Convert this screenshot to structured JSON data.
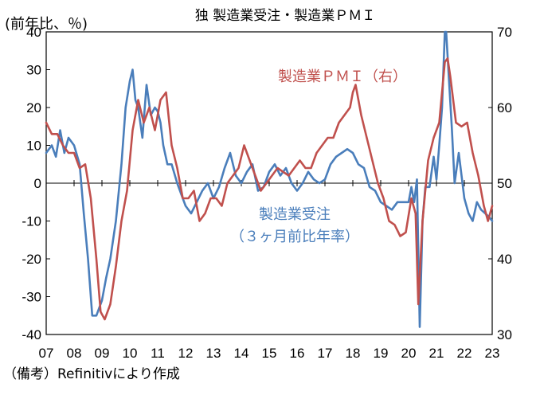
{
  "chart_data": {
    "type": "line",
    "title": "独 製造業受注・製造業ＰＭＩ",
    "left_axis_label": "(前年比、％)",
    "ylim_left": [
      -40,
      40
    ],
    "ylim_right": [
      30,
      70
    ],
    "left_ticks": [
      "40",
      "30",
      "20",
      "10",
      "0",
      "-10",
      "-20",
      "-30",
      "-40"
    ],
    "right_ticks": [
      "70",
      "60",
      "50",
      "40",
      "30"
    ],
    "xlim": [
      2007,
      2023
    ],
    "x_ticks": [
      "07",
      "08",
      "09",
      "10",
      "11",
      "12",
      "13",
      "14",
      "15",
      "16",
      "17",
      "18",
      "19",
      "20",
      "21",
      "22",
      "23"
    ],
    "source_note": "（備考）Refinitivにより作成",
    "series": [
      {
        "name": "製造業受注",
        "name_line2": "（３ヶ月前比年率）",
        "axis": "left",
        "color": "#4a7ebb",
        "x": [
          2007.0,
          2007.2,
          2007.35,
          2007.5,
          2007.65,
          2007.8,
          2008.0,
          2008.2,
          2008.35,
          2008.5,
          2008.65,
          2008.8,
          2009.0,
          2009.15,
          2009.3,
          2009.5,
          2009.7,
          2009.85,
          2010.0,
          2010.1,
          2010.2,
          2010.3,
          2010.45,
          2010.6,
          2010.75,
          2010.9,
          2011.0,
          2011.1,
          2011.2,
          2011.35,
          2011.5,
          2011.7,
          2011.85,
          2012.0,
          2012.2,
          2012.4,
          2012.6,
          2012.8,
          2013.0,
          2013.2,
          2013.4,
          2013.6,
          2013.8,
          2014.0,
          2014.2,
          2014.4,
          2014.6,
          2014.8,
          2015.0,
          2015.2,
          2015.4,
          2015.6,
          2015.8,
          2016.0,
          2016.2,
          2016.4,
          2016.6,
          2016.8,
          2017.0,
          2017.2,
          2017.4,
          2017.6,
          2017.8,
          2018.0,
          2018.2,
          2018.4,
          2018.6,
          2018.8,
          2019.0,
          2019.2,
          2019.4,
          2019.6,
          2019.8,
          2020.0,
          2020.1,
          2020.2,
          2020.3,
          2020.4,
          2020.5,
          2020.6,
          2020.75,
          2020.9,
          2021.0,
          2021.1,
          2021.2,
          2021.3,
          2021.35,
          2021.45,
          2021.55,
          2021.65,
          2021.8,
          2022.0,
          2022.15,
          2022.3,
          2022.45,
          2022.6,
          2022.75,
          2022.9,
          2023.0
        ],
        "y": [
          8,
          10,
          7,
          14,
          8,
          12,
          10,
          5,
          -8,
          -20,
          -35,
          -35,
          -31,
          -25,
          -20,
          -10,
          5,
          20,
          27,
          30,
          22,
          20,
          12,
          26,
          18,
          20,
          19,
          16,
          10,
          5,
          5,
          0,
          -3,
          -6,
          -8,
          -5,
          -2,
          0,
          -4,
          -1,
          4,
          8,
          2,
          0,
          3,
          5,
          -2,
          -1,
          3,
          5,
          2,
          4,
          0,
          -2,
          0,
          3,
          1,
          0,
          1,
          5,
          7,
          8,
          9,
          8,
          5,
          4,
          -1,
          -2,
          -5,
          -6,
          -7,
          -5,
          -5,
          -5,
          -1,
          -5,
          1,
          -38,
          -10,
          -1,
          -1,
          7,
          1,
          10,
          20,
          40,
          40,
          27,
          15,
          0,
          8,
          -4,
          -8,
          -10,
          -5,
          -7,
          -8,
          -9,
          -10
        ]
      },
      {
        "name": "製造業ＰＭＩ（右）",
        "axis": "right",
        "color": "#c0504d",
        "x": [
          2007.0,
          2007.2,
          2007.4,
          2007.6,
          2007.8,
          2008.0,
          2008.2,
          2008.4,
          2008.6,
          2008.8,
          2008.95,
          2009.1,
          2009.3,
          2009.5,
          2009.7,
          2009.9,
          2010.1,
          2010.3,
          2010.5,
          2010.7,
          2010.9,
          2011.1,
          2011.3,
          2011.5,
          2011.7,
          2011.9,
          2012.1,
          2012.3,
          2012.5,
          2012.7,
          2012.9,
          2013.1,
          2013.3,
          2013.5,
          2013.7,
          2013.9,
          2014.1,
          2014.3,
          2014.5,
          2014.7,
          2014.9,
          2015.1,
          2015.3,
          2015.5,
          2015.7,
          2015.9,
          2016.1,
          2016.3,
          2016.5,
          2016.7,
          2016.9,
          2017.1,
          2017.3,
          2017.5,
          2017.7,
          2017.9,
          2018.0,
          2018.1,
          2018.3,
          2018.5,
          2018.7,
          2018.9,
          2019.1,
          2019.3,
          2019.5,
          2019.7,
          2019.9,
          2020.1,
          2020.25,
          2020.35,
          2020.5,
          2020.7,
          2020.9,
          2021.1,
          2021.3,
          2021.4,
          2021.5,
          2021.7,
          2021.9,
          2022.1,
          2022.3,
          2022.5,
          2022.7,
          2022.85,
          2023.0
        ],
        "y": [
          58,
          56.5,
          56.5,
          55,
          54,
          54,
          52,
          52.5,
          48,
          40,
          33,
          32,
          34,
          39,
          45,
          49,
          57,
          61,
          58,
          60,
          57,
          61,
          62,
          55,
          52,
          48,
          48,
          49,
          45,
          46,
          48,
          48,
          47,
          50,
          51,
          52,
          55,
          53,
          51,
          49,
          50,
          51,
          52,
          51.5,
          51,
          52,
          53,
          52,
          52,
          54,
          55,
          56,
          56,
          58,
          59,
          60,
          62,
          63,
          59,
          56,
          53,
          50,
          48,
          45,
          44.5,
          43,
          43.5,
          48,
          46,
          34,
          45,
          53,
          56,
          58,
          66,
          66.5,
          64,
          58,
          57.5,
          58,
          54,
          51,
          47,
          45,
          47
        ]
      }
    ]
  }
}
